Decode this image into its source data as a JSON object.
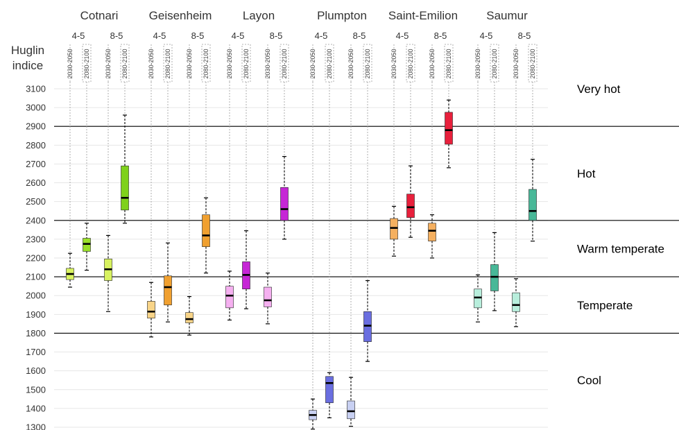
{
  "chart_data": {
    "type": "boxplot",
    "ylabel_lines": [
      "Huglin",
      "indice"
    ],
    "ylim": [
      1300,
      3100
    ],
    "yticks": [
      1300,
      1400,
      1500,
      1600,
      1700,
      1800,
      1900,
      2000,
      2100,
      2200,
      2300,
      2400,
      2500,
      2600,
      2700,
      2800,
      2900,
      3000,
      3100
    ],
    "class_thresholds": [
      1800,
      2100,
      2400,
      2900
    ],
    "classes": [
      {
        "label": "Very hot",
        "y": 3100
      },
      {
        "label": "Hot",
        "y": 2650
      },
      {
        "label": "Warm temperate",
        "y": 2250
      },
      {
        "label": "Temperate",
        "y": 1950
      },
      {
        "label": "Cool",
        "y": 1550
      }
    ],
    "scenarios": [
      "4-5",
      "8-5"
    ],
    "periods": [
      "2030-2050",
      "2080-2100"
    ],
    "sites": [
      {
        "name": "Cotnari",
        "boxes": [
          {
            "scenario": "4-5",
            "period": "2030-2050",
            "min": 2045,
            "q1": 2085,
            "median": 2115,
            "q3": 2145,
            "max": 2225,
            "color": "#d8f260"
          },
          {
            "scenario": "4-5",
            "period": "2080-2100",
            "min": 2135,
            "q1": 2235,
            "median": 2275,
            "q3": 2305,
            "max": 2385,
            "color": "#9ae02a"
          },
          {
            "scenario": "8-5",
            "period": "2030-2050",
            "min": 1915,
            "q1": 2080,
            "median": 2140,
            "q3": 2195,
            "max": 2320,
            "color": "#d8f260"
          },
          {
            "scenario": "8-5",
            "period": "2080-2100",
            "min": 2385,
            "q1": 2455,
            "median": 2520,
            "q3": 2690,
            "max": 2960,
            "color": "#7fd11b"
          }
        ]
      },
      {
        "name": "Geisenheim",
        "boxes": [
          {
            "scenario": "4-5",
            "period": "2030-2050",
            "min": 1780,
            "q1": 1880,
            "median": 1915,
            "q3": 1970,
            "max": 2070,
            "color": "#f8d488"
          },
          {
            "scenario": "4-5",
            "period": "2080-2100",
            "min": 1860,
            "q1": 1950,
            "median": 2045,
            "q3": 2105,
            "max": 2280,
            "color": "#f0a030"
          },
          {
            "scenario": "8-5",
            "period": "2030-2050",
            "min": 1790,
            "q1": 1855,
            "median": 1875,
            "q3": 1910,
            "max": 1995,
            "color": "#f8d488"
          },
          {
            "scenario": "8-5",
            "period": "2080-2100",
            "min": 2120,
            "q1": 2260,
            "median": 2320,
            "q3": 2430,
            "max": 2520,
            "color": "#f0a030"
          }
        ]
      },
      {
        "name": "Layon",
        "boxes": [
          {
            "scenario": "4-5",
            "period": "2030-2050",
            "min": 1870,
            "q1": 1935,
            "median": 2000,
            "q3": 2050,
            "max": 2130,
            "color": "#f5b0f0"
          },
          {
            "scenario": "4-5",
            "period": "2080-2100",
            "min": 1930,
            "q1": 2035,
            "median": 2110,
            "q3": 2180,
            "max": 2345,
            "color": "#c626d6"
          },
          {
            "scenario": "8-5",
            "period": "2030-2050",
            "min": 1850,
            "q1": 1940,
            "median": 1975,
            "q3": 2045,
            "max": 2120,
            "color": "#f5b0f0"
          },
          {
            "scenario": "8-5",
            "period": "2080-2100",
            "min": 2300,
            "q1": 2400,
            "median": 2460,
            "q3": 2575,
            "max": 2740,
            "color": "#c626d6"
          }
        ]
      },
      {
        "name": "Plumpton",
        "boxes": [
          {
            "scenario": "4-5",
            "period": "2030-2050",
            "min": 1290,
            "q1": 1340,
            "median": 1365,
            "q3": 1390,
            "max": 1450,
            "color": "#c8d0f2"
          },
          {
            "scenario": "4-5",
            "period": "2080-2100",
            "min": 1350,
            "q1": 1430,
            "median": 1535,
            "q3": 1570,
            "max": 1590,
            "color": "#6a6ee0"
          },
          {
            "scenario": "8-5",
            "period": "2030-2050",
            "min": 1305,
            "q1": 1345,
            "median": 1385,
            "q3": 1440,
            "max": 1565,
            "color": "#c8d0f2"
          },
          {
            "scenario": "8-5",
            "period": "2080-2100",
            "min": 1650,
            "q1": 1755,
            "median": 1840,
            "q3": 1915,
            "max": 2080,
            "color": "#6a6ee0"
          }
        ]
      },
      {
        "name": "Saint-Emilion",
        "boxes": [
          {
            "scenario": "4-5",
            "period": "2030-2050",
            "min": 2210,
            "q1": 2300,
            "median": 2360,
            "q3": 2410,
            "max": 2475,
            "color": "#f5b060"
          },
          {
            "scenario": "4-5",
            "period": "2080-2100",
            "min": 2310,
            "q1": 2415,
            "median": 2470,
            "q3": 2540,
            "max": 2690,
            "color": "#e8203c"
          },
          {
            "scenario": "8-5",
            "period": "2030-2050",
            "min": 2200,
            "q1": 2290,
            "median": 2345,
            "q3": 2385,
            "max": 2430,
            "color": "#f5b060"
          },
          {
            "scenario": "8-5",
            "period": "2080-2100",
            "min": 2680,
            "q1": 2805,
            "median": 2880,
            "q3": 2975,
            "max": 3040,
            "color": "#e8203c"
          }
        ]
      },
      {
        "name": "Saumur",
        "boxes": [
          {
            "scenario": "4-5",
            "period": "2030-2050",
            "min": 1860,
            "q1": 1935,
            "median": 1990,
            "q3": 2035,
            "max": 2110,
            "color": "#b8eedc"
          },
          {
            "scenario": "4-5",
            "period": "2080-2100",
            "min": 1920,
            "q1": 2025,
            "median": 2100,
            "q3": 2165,
            "max": 2335,
            "color": "#48b898"
          },
          {
            "scenario": "8-5",
            "period": "2030-2050",
            "min": 1835,
            "q1": 1915,
            "median": 1950,
            "q3": 2015,
            "max": 2090,
            "color": "#b8eedc"
          },
          {
            "scenario": "8-5",
            "period": "2080-2100",
            "min": 2290,
            "q1": 2400,
            "median": 2450,
            "q3": 2565,
            "max": 2725,
            "color": "#48b898"
          }
        ]
      }
    ],
    "colors": {
      "grid": "#e6e6e6",
      "threshold": "#000000",
      "guide": "#9a9a9a",
      "whisker": "#000000"
    }
  }
}
